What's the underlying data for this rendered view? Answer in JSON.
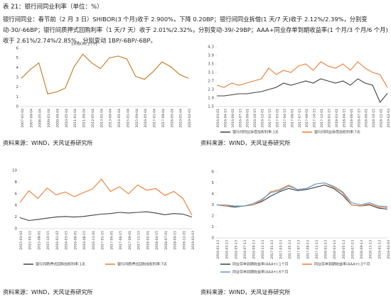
{
  "header": {
    "title": "表 21：银行间同业利率（单位：%）"
  },
  "summary": "银行间同业：春节前（2 月 3 日）SHIBOR(3 个月)收于 2.900%，下降 0.20BP；银行间同业拆借(1 天/7 天)收于 2.12%/2.39%，分别变动-30/-66BP；银行间质押式回购利率（1 天/7 天）收于 2.01%/2.32%，分别变动-39/-29BP；AAA+同业存单到期收益率(1 个月/3 个月/6 个月)收于 2.61%/2.74%/2.85%，分别变动 1BP/-6BP/-6BP。",
  "sources": [
    "资料来源：WIND，天风证券研究所",
    "资料来源：WIND，天风证券研究所",
    "资料来源：WIND，天风证券研究所",
    "资料来源：WIND，天风证券研究所"
  ],
  "chart_data": [
    {
      "type": "line",
      "title": "SHIBOR:3个月",
      "x": [
        "2007-01-04",
        "2007-09-04",
        "2008-05-04",
        "2009-01-04",
        "2009-09-04",
        "2010-05-04",
        "2011-01-04",
        "2011-09-04",
        "2012-05-04",
        "2013-01-04",
        "2013-09-04",
        "2014-05-04",
        "2015-01-04",
        "2015-09-04",
        "2016-05-04",
        "2017-01-04",
        "2017-09-04",
        "2018-05-04",
        "2019-01-04",
        "2019-02-03"
      ],
      "series": [
        {
          "name": null,
          "color": "#c8761e",
          "values": [
            2.9,
            3.8,
            4.5,
            1.3,
            1.5,
            1.9,
            4.1,
            5.4,
            4.5,
            3.9,
            5.0,
            5.2,
            4.9,
            3.1,
            2.8,
            3.6,
            4.6,
            4.1,
            3.3,
            2.9
          ]
        }
      ],
      "ylim": [
        0,
        6
      ],
      "yticks": [
        0,
        1,
        2,
        3,
        4,
        5,
        6
      ]
    },
    {
      "type": "line",
      "x": [
        "2016-03-01",
        "2016-04-15",
        "2016-06-01",
        "2016-07-15",
        "2016-09-01",
        "2016-10-15",
        "2016-12-01",
        "2017-01-15",
        "2017-03-01",
        "2017-04-15",
        "2017-06-01",
        "2017-07-15",
        "2017-09-01",
        "2017-10-15",
        "2017-12-01",
        "2018-01-15",
        "2018-03-01",
        "2018-04-15",
        "2018-06-01",
        "2018-07-15",
        "2018-09-01",
        "2018-10-15",
        "2018-12-01",
        "2019-02-03"
      ],
      "series": [
        {
          "name": "银行间同业拆借加权利率:1天",
          "color": "#404040",
          "values": [
            2.0,
            2.0,
            2.05,
            2.1,
            2.1,
            2.15,
            2.2,
            2.3,
            2.4,
            2.6,
            2.5,
            2.6,
            2.7,
            2.6,
            2.8,
            2.7,
            2.6,
            2.7,
            2.5,
            2.8,
            2.6,
            2.5,
            1.7,
            2.12
          ]
        },
        {
          "name": "银行间同业拆借加权利率:7天",
          "color": "#ed7d31",
          "values": [
            2.5,
            2.4,
            2.6,
            2.5,
            2.6,
            2.7,
            2.8,
            3.3,
            3.0,
            3.2,
            3.1,
            3.4,
            3.5,
            3.2,
            3.6,
            3.4,
            3.3,
            3.5,
            3.2,
            3.6,
            3.3,
            3.1,
            3.0,
            2.39
          ]
        }
      ],
      "ylim": [
        1.5,
        4.3
      ],
      "yticks": [
        1.5,
        1.9,
        2.3,
        2.7,
        3.1,
        3.5,
        3.9,
        4.3
      ]
    },
    {
      "type": "line",
      "x": [
        "2015-03-02",
        "2015-05-15",
        "2015-08-01",
        "2015-10-15",
        "2016-01-02",
        "2016-03-15",
        "2016-06-01",
        "2016-08-15",
        "2016-11-01",
        "2017-01-15",
        "2017-04-01",
        "2017-06-15",
        "2017-09-01",
        "2017-11-15",
        "2018-02-01",
        "2018-04-15",
        "2018-07-01",
        "2018-09-15",
        "2018-12-01",
        "2019-02-03"
      ],
      "series": [
        {
          "name": "银行间质押式回购加权利率:1天",
          "color": "#404040",
          "values": [
            1.9,
            1.4,
            1.6,
            1.8,
            2.0,
            2.1,
            2.0,
            2.1,
            2.3,
            2.5,
            2.6,
            2.8,
            2.7,
            2.8,
            2.9,
            2.7,
            2.4,
            2.6,
            2.5,
            2.01
          ]
        },
        {
          "name": "银行间质押式回购加权利率:7天",
          "color": "#ed7d31",
          "values": [
            4.5,
            6.5,
            5.2,
            7.0,
            5.8,
            6.3,
            5.5,
            6.2,
            6.8,
            8.5,
            6.4,
            7.2,
            6.0,
            7.5,
            6.6,
            6.9,
            5.7,
            6.4,
            5.2,
            2.32
          ]
        }
      ],
      "ylim": [
        0,
        10
      ],
      "yticks": [
        0,
        2,
        4,
        6,
        8,
        10
      ]
    },
    {
      "type": "line",
      "x": [
        "2016-01-13",
        "2016-03-13",
        "2016-05-13",
        "2016-07-13",
        "2016-09-13",
        "2016-11-13",
        "2017-01-13",
        "2017-03-13",
        "2017-05-13",
        "2017-07-13",
        "2017-09-13",
        "2017-11-13",
        "2018-01-13",
        "2018-03-13",
        "2018-05-13",
        "2018-07-13",
        "2018-09-13",
        "2018-11-13",
        "2019-01-13",
        "2019-02-03"
      ],
      "series": [
        {
          "name": "同业存单到期收益率(AAA+):1个月",
          "color": "#404040",
          "values": [
            3.0,
            2.9,
            2.8,
            2.9,
            3.0,
            3.3,
            3.8,
            4.2,
            4.5,
            4.3,
            4.4,
            4.6,
            4.8,
            4.5,
            3.9,
            3.0,
            2.9,
            3.0,
            2.7,
            2.61
          ]
        },
        {
          "name": "同业存单到期收益率(AAA+):3个月",
          "color": "#ed7d31",
          "values": [
            3.0,
            2.9,
            2.9,
            2.9,
            3.0,
            3.4,
            4.2,
            4.4,
            4.8,
            4.4,
            4.5,
            4.9,
            5.0,
            4.6,
            4.1,
            3.0,
            2.9,
            3.1,
            2.8,
            2.74
          ]
        },
        {
          "name": "同业存单到期收益率(AAA+):6个月",
          "color": "#5b9bd5",
          "values": [
            3.0,
            3.0,
            2.9,
            2.9,
            3.1,
            3.5,
            4.1,
            4.3,
            4.7,
            4.4,
            4.5,
            4.9,
            5.0,
            4.7,
            4.2,
            3.2,
            3.0,
            3.2,
            2.9,
            2.85
          ]
        }
      ],
      "ylim": [
        0,
        6
      ],
      "yticks": [
        0,
        1,
        2,
        3,
        4,
        5,
        6
      ]
    }
  ]
}
